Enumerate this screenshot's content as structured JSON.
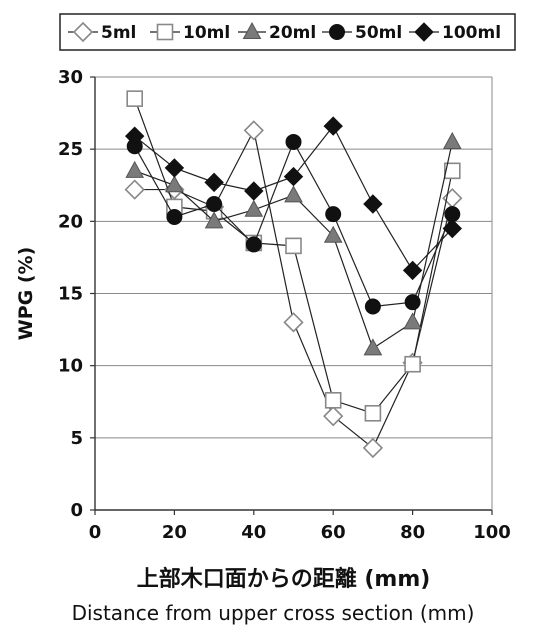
{
  "chart_data": {
    "type": "line",
    "xlabel": "上部木口面からの距離 (mm)",
    "xlabel_en": "Distance from upper cross section (mm)",
    "ylabel": "WPG (%)",
    "xlim": [
      0,
      100
    ],
    "ylim": [
      0,
      30
    ],
    "x_ticks": [
      "0",
      "20",
      "40",
      "60",
      "80",
      "100"
    ],
    "y_ticks": [
      "0",
      "5",
      "10",
      "15",
      "20",
      "25",
      "30"
    ],
    "grid": "horizontal",
    "legend_position": "top",
    "x": [
      10,
      20,
      30,
      40,
      50,
      60,
      70,
      80,
      90
    ],
    "series": [
      {
        "name": "5ml",
        "marker": "diamond-open",
        "values": [
          22.2,
          22.2,
          21.0,
          26.3,
          13.0,
          6.5,
          4.3,
          10.2,
          21.6
        ]
      },
      {
        "name": "10ml",
        "marker": "square-open",
        "values": [
          28.5,
          21.0,
          20.7,
          18.5,
          18.3,
          7.6,
          6.7,
          10.1,
          23.5
        ]
      },
      {
        "name": "20ml",
        "marker": "triangle-gray",
        "values": [
          23.5,
          22.5,
          20.0,
          20.8,
          21.8,
          19.0,
          11.2,
          13.0,
          25.5
        ]
      },
      {
        "name": "50ml",
        "marker": "circle-black",
        "values": [
          25.2,
          20.3,
          21.2,
          18.4,
          25.5,
          20.5,
          14.1,
          14.4,
          20.5
        ]
      },
      {
        "name": "100ml",
        "marker": "diamond-black",
        "values": [
          25.9,
          23.7,
          22.7,
          22.1,
          23.1,
          26.6,
          21.2,
          16.6,
          19.5
        ]
      }
    ]
  }
}
